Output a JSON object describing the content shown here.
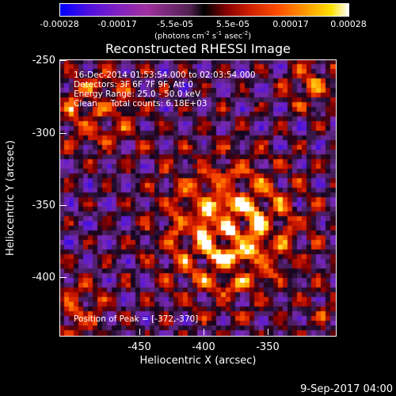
{
  "colorbar": {
    "ticks": [
      "-0.00028",
      "-0.00017",
      "-5.5e-05",
      "5.5e-05",
      "0.00017",
      "0.00028"
    ],
    "unit_prefix": "(photons cm",
    "unit_exp1": "-2",
    "unit_mid": " s",
    "unit_exp2": "-1",
    "unit_end": " asec",
    "unit_exp3": "-2",
    "unit_close": ")"
  },
  "title": "Reconstructed RHESSI Image",
  "annotations": {
    "time": "16-Dec-2014 01:53:54.000 to 02:03:54.000",
    "detectors": "Detectors: 3F 6F 7F 9F, Att 0",
    "energy": "Energy Range: 25.0 - 50.0 keV",
    "method": "Clean     Total counts: 6.18E+03",
    "peak": "Position of Peak = [-372,-370]"
  },
  "axes": {
    "xlabel": "Heliocentric X (arcsec)",
    "ylabel": "Heliocentric Y (arcsec)",
    "xticks": [
      "-450",
      "-400",
      "-350"
    ],
    "yticks": [
      "-250",
      "-300",
      "-350",
      "-400"
    ]
  },
  "footer_date": "9-Sep-2017 04:00"
}
